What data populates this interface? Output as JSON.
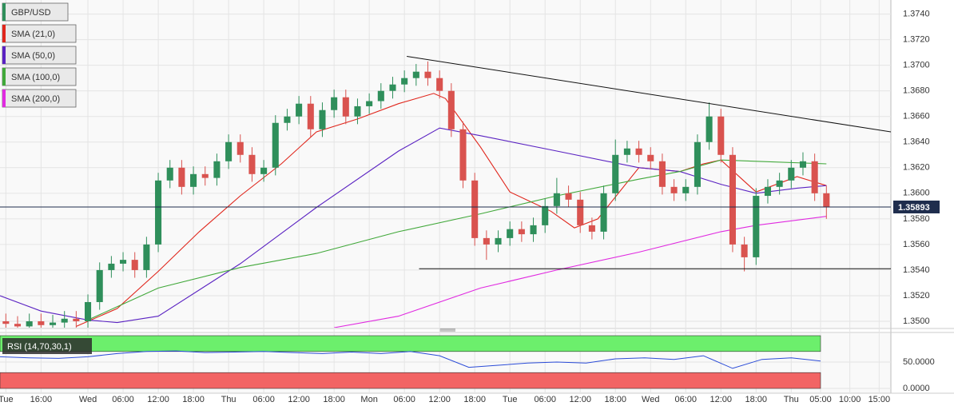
{
  "chart_data": [
    {
      "type": "candlestick",
      "name": "GBP/USD",
      "up_color": "#2f8f5b",
      "down_color": "#d9534f",
      "x": [
        -14,
        -12,
        -10,
        -8,
        -6,
        -4,
        -2,
        0,
        2,
        4,
        6,
        8,
        10,
        12,
        14,
        16,
        18,
        20,
        22,
        24,
        26,
        28,
        30,
        32,
        34,
        36,
        38,
        40,
        42,
        44,
        46,
        48,
        50,
        52,
        54,
        56,
        58,
        60,
        62,
        64,
        66,
        68,
        70,
        72,
        74,
        76,
        78,
        80,
        82,
        84,
        86,
        88,
        90,
        92,
        94,
        96,
        98,
        100,
        102,
        104,
        106,
        108,
        110,
        112,
        114,
        116,
        118,
        120,
        122,
        124,
        126
      ],
      "open": [
        1.35,
        1.3498,
        1.3496,
        1.35,
        1.3497,
        1.3499,
        1.3502,
        1.35,
        1.3515,
        1.354,
        1.3545,
        1.3548,
        1.354,
        1.356,
        1.361,
        1.362,
        1.3605,
        1.3615,
        1.3612,
        1.3625,
        1.364,
        1.363,
        1.3615,
        1.362,
        1.3655,
        1.366,
        1.367,
        1.365,
        1.3665,
        1.3675,
        1.366,
        1.3668,
        1.3672,
        1.368,
        1.3685,
        1.369,
        1.3695,
        1.369,
        1.368,
        1.365,
        1.361,
        1.3565,
        1.356,
        1.3565,
        1.3572,
        1.3568,
        1.3575,
        1.359,
        1.36,
        1.3595,
        1.3575,
        1.357,
        1.36,
        1.363,
        1.3635,
        1.363,
        1.3625,
        1.3605,
        1.36,
        1.3605,
        1.364,
        1.366,
        1.363,
        1.356,
        1.355,
        1.3598,
        1.3605,
        1.361,
        1.362,
        1.3625,
        1.36
      ],
      "high": [
        1.3506,
        1.3504,
        1.3506,
        1.3506,
        1.3505,
        1.3508,
        1.3508,
        1.3521,
        1.3546,
        1.3551,
        1.3554,
        1.3554,
        1.3566,
        1.3616,
        1.3626,
        1.3626,
        1.3621,
        1.3621,
        1.3631,
        1.3646,
        1.3646,
        1.3636,
        1.3626,
        1.3661,
        1.3666,
        1.3676,
        1.3676,
        1.3671,
        1.3681,
        1.3681,
        1.3674,
        1.3678,
        1.3686,
        1.3691,
        1.3696,
        1.3701,
        1.3703,
        1.3696,
        1.3686,
        1.3656,
        1.3616,
        1.3571,
        1.3571,
        1.3578,
        1.3578,
        1.3581,
        1.3596,
        1.3612,
        1.3606,
        1.3601,
        1.3581,
        1.3606,
        1.3642,
        1.3641,
        1.3641,
        1.3636,
        1.3631,
        1.3611,
        1.3611,
        1.3646,
        1.3671,
        1.3666,
        1.3636,
        1.3566,
        1.3604,
        1.3611,
        1.3616,
        1.3626,
        1.3632,
        1.3631,
        1.3606
      ],
      "low": [
        1.3492,
        1.349,
        1.349,
        1.3491,
        1.3491,
        1.3493,
        1.3494,
        1.3494,
        1.3509,
        1.3534,
        1.3539,
        1.3534,
        1.3534,
        1.3554,
        1.3604,
        1.3599,
        1.3599,
        1.3606,
        1.3606,
        1.3619,
        1.3624,
        1.3609,
        1.3609,
        1.3614,
        1.3649,
        1.3654,
        1.3644,
        1.3644,
        1.3659,
        1.3654,
        1.3654,
        1.3662,
        1.3666,
        1.3674,
        1.3679,
        1.3684,
        1.3684,
        1.3674,
        1.3644,
        1.3604,
        1.3559,
        1.3548,
        1.3554,
        1.3559,
        1.3562,
        1.3562,
        1.3569,
        1.3584,
        1.3589,
        1.3569,
        1.3564,
        1.3564,
        1.3594,
        1.3624,
        1.3624,
        1.3619,
        1.3599,
        1.3594,
        1.3594,
        1.3599,
        1.3634,
        1.3624,
        1.3554,
        1.3539,
        1.3544,
        1.3592,
        1.3599,
        1.3604,
        1.3614,
        1.3594,
        1.358
      ],
      "close": [
        1.3498,
        1.3496,
        1.35,
        1.3497,
        1.3499,
        1.3502,
        1.35,
        1.3515,
        1.354,
        1.3545,
        1.3548,
        1.354,
        1.356,
        1.361,
        1.362,
        1.3605,
        1.3615,
        1.3612,
        1.3625,
        1.364,
        1.363,
        1.3615,
        1.362,
        1.3655,
        1.366,
        1.367,
        1.365,
        1.3665,
        1.3675,
        1.366,
        1.3668,
        1.3672,
        1.368,
        1.3685,
        1.369,
        1.3695,
        1.369,
        1.368,
        1.365,
        1.361,
        1.3565,
        1.356,
        1.3565,
        1.3572,
        1.3568,
        1.3575,
        1.359,
        1.36,
        1.3595,
        1.3575,
        1.357,
        1.36,
        1.363,
        1.3635,
        1.363,
        1.3625,
        1.3605,
        1.36,
        1.3605,
        1.364,
        1.366,
        1.363,
        1.356,
        1.355,
        1.3598,
        1.3605,
        1.361,
        1.362,
        1.3625,
        1.36,
        1.35893
      ],
      "overlays": [
        {
          "name": "SMA (21,0)",
          "color": "#e0261c",
          "x": [
            -2,
            5,
            12,
            19,
            26,
            33,
            39,
            46,
            53,
            59,
            61,
            67,
            72,
            79,
            83,
            87,
            94,
            101,
            105,
            108,
            114,
            121,
            126
          ],
          "values": [
            1.3496,
            1.351,
            1.3539,
            1.357,
            1.3598,
            1.3623,
            1.3648,
            1.3658,
            1.367,
            1.3678,
            1.3674,
            1.3636,
            1.3601,
            1.3586,
            1.3573,
            1.358,
            1.362,
            1.3617,
            1.3623,
            1.3626,
            1.3601,
            1.3613,
            1.3606
          ]
        },
        {
          "name": "SMA (50,0)",
          "color": "#5a22c2",
          "x": [
            -15,
            -8,
            0,
            5,
            12,
            26,
            39,
            53,
            60,
            67,
            80,
            94,
            101,
            108,
            114,
            121,
            126
          ],
          "values": [
            1.352,
            1.3508,
            1.3501,
            1.3499,
            1.3504,
            1.3545,
            1.3589,
            1.3633,
            1.3651,
            1.3645,
            1.3633,
            1.362,
            1.3617,
            1.3607,
            1.36,
            1.3604,
            1.3606
          ]
        },
        {
          "name": "SMA (100,0)",
          "color": "#41a83a",
          "x": [
            0,
            12,
            26,
            39,
            53,
            67,
            80,
            94,
            101,
            108,
            114,
            126
          ],
          "values": [
            1.3501,
            1.3526,
            1.3542,
            1.3553,
            1.357,
            1.3584,
            1.3598,
            1.3611,
            1.3617,
            1.3626,
            1.3625,
            1.3623
          ]
        },
        {
          "name": "SMA (200,0)",
          "color": "#e02ae0",
          "x": [
            42,
            53,
            67,
            80,
            94,
            108,
            114,
            126
          ],
          "values": [
            1.3495,
            1.3504,
            1.3526,
            1.354,
            1.3554,
            1.357,
            1.3575,
            1.3582
          ]
        }
      ],
      "trendlines": [
        {
          "color": "#111111",
          "x": [
            54.4,
            137
          ],
          "values": [
            1.3707,
            1.3648
          ]
        },
        {
          "color": "#111111",
          "x": [
            56.5,
            137
          ],
          "values": [
            1.3541,
            1.3541
          ]
        }
      ],
      "last_price": 1.35893,
      "last_price_color": "#1f2d4d",
      "xlim": [
        -15,
        137
      ],
      "xticks": [
        {
          "value": -14,
          "label": "Tue"
        },
        {
          "value": -8,
          "label": "16:00"
        },
        {
          "value": 0,
          "label": "Wed"
        },
        {
          "value": 6,
          "label": "06:00"
        },
        {
          "value": 12,
          "label": "12:00"
        },
        {
          "value": 18,
          "label": "18:00"
        },
        {
          "value": 24,
          "label": "Thu"
        },
        {
          "value": 30,
          "label": "06:00"
        },
        {
          "value": 36,
          "label": "12:00"
        },
        {
          "value": 42,
          "label": "18:00"
        },
        {
          "value": 48,
          "label": "Mon"
        },
        {
          "value": 54,
          "label": "06:00"
        },
        {
          "value": 60,
          "label": "12:00"
        },
        {
          "value": 66,
          "label": "18:00"
        },
        {
          "value": 72,
          "label": "Tue"
        },
        {
          "value": 78,
          "label": "06:00"
        },
        {
          "value": 84,
          "label": "12:00"
        },
        {
          "value": 90,
          "label": "18:00"
        },
        {
          "value": 96,
          "label": "Wed"
        },
        {
          "value": 102,
          "label": "06:00"
        },
        {
          "value": 108,
          "label": "12:00"
        },
        {
          "value": 114,
          "label": "18:00"
        },
        {
          "value": 120,
          "label": "Thu"
        },
        {
          "value": 125,
          "label": "05:00"
        },
        {
          "value": 130,
          "label": "10:00"
        },
        {
          "value": 135,
          "label": "15:00"
        }
      ],
      "ylim": [
        1.3495,
        1.3751
      ],
      "yticks": [
        {
          "value": 1.35,
          "label": "1.3500"
        },
        {
          "value": 1.352,
          "label": "1.3520"
        },
        {
          "value": 1.354,
          "label": "1.3540"
        },
        {
          "value": 1.356,
          "label": "1.3560"
        },
        {
          "value": 1.358,
          "label": "1.3580"
        },
        {
          "value": 1.36,
          "label": "1.3600"
        },
        {
          "value": 1.362,
          "label": "1.3620"
        },
        {
          "value": 1.364,
          "label": "1.3640"
        },
        {
          "value": 1.366,
          "label": "1.3660"
        },
        {
          "value": 1.368,
          "label": "1.3680"
        },
        {
          "value": 1.37,
          "label": "1.3700"
        },
        {
          "value": 1.372,
          "label": "1.3720"
        },
        {
          "value": 1.374,
          "label": "1.3740"
        }
      ],
      "grid": true
    },
    {
      "type": "line",
      "title": "RSI (14,70,30,1)",
      "x": [
        -15,
        -10,
        -5,
        0,
        5,
        10,
        15,
        20,
        25,
        30,
        35,
        40,
        45,
        50,
        55,
        60,
        65,
        70,
        75,
        80,
        85,
        90,
        95,
        100,
        105,
        110,
        115,
        120,
        125
      ],
      "series": [
        {
          "name": "RSI",
          "color": "#2a4bd7",
          "values": [
            60,
            58,
            57,
            60,
            66,
            70,
            71,
            68,
            69,
            70,
            68,
            66,
            69,
            66,
            70,
            62,
            40,
            44,
            48,
            50,
            48,
            56,
            58,
            55,
            62,
            38,
            55,
            58,
            52
          ]
        }
      ],
      "bands": [
        {
          "from": 70,
          "to": 100,
          "color": "#6cef6c"
        },
        {
          "from": 0,
          "to": 30,
          "color": "#f26464"
        }
      ],
      "xlim": [
        -15,
        137
      ],
      "ylim": [
        0,
        100
      ],
      "yticks": [
        {
          "value": 50,
          "label": "50.0000"
        },
        {
          "value": 0,
          "label": "0.0000"
        }
      ],
      "grid": true
    }
  ]
}
